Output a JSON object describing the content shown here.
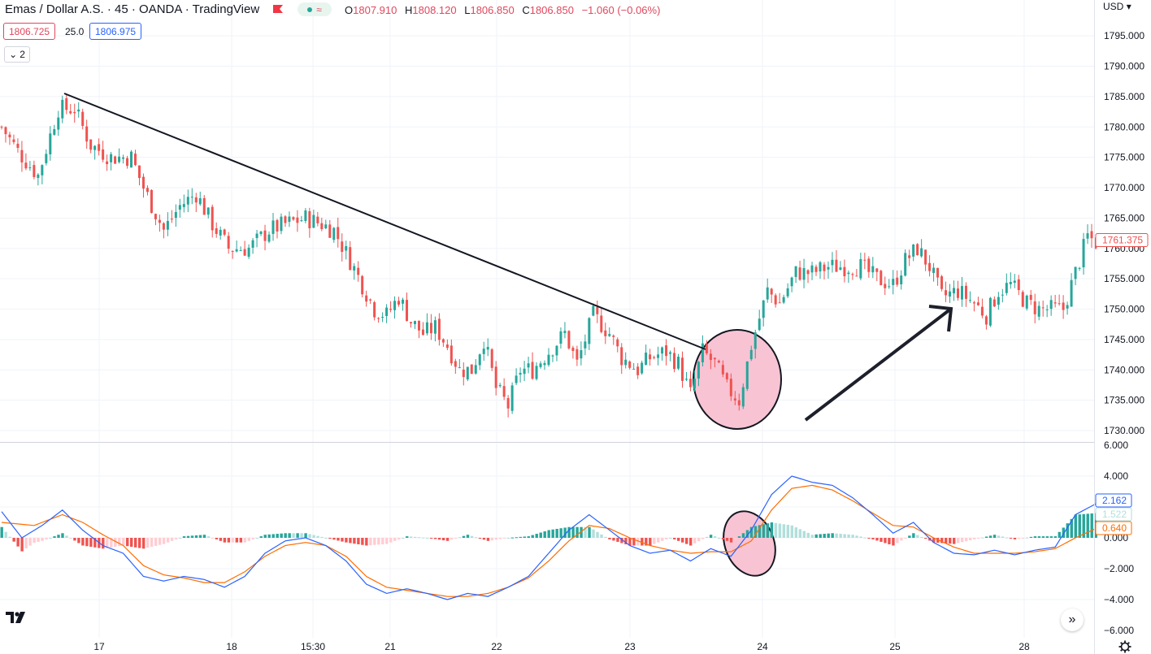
{
  "header": {
    "title": "Emas / Dollar A.S. · 45 · OANDA · TradingView",
    "ohlc": {
      "o_label": "O",
      "o": "1807.910",
      "h_label": "H",
      "h": "1808.120",
      "l_label": "L",
      "l": "1806.850",
      "c_label": "C",
      "c": "1806.850",
      "change": "−1.060 (−0.06%)"
    },
    "bid": "1806.725",
    "spread": "25.0",
    "ask": "1806.975",
    "indicator_count": "2",
    "currency": "USD"
  },
  "colors": {
    "up": "#26a69a",
    "down": "#ef5350",
    "hist_up_strong": "#26a69a",
    "hist_up_weak": "#b2dfdb",
    "hist_down_strong": "#ef5350",
    "hist_down_weak": "#ffcdd2",
    "macd": "#2962ff",
    "signal": "#ff6d00",
    "highlight": "#f8c3d3"
  },
  "chart_data": [
    {
      "type": "candlestick",
      "ylim": [
        1728,
        1799
      ],
      "y_ticks": [
        "1730.000",
        "1735.000",
        "1740.000",
        "1745.000",
        "1750.000",
        "1755.000",
        "1760.000",
        "1765.000",
        "1770.000",
        "1775.000",
        "1780.000",
        "1785.000",
        "1790.000",
        "1795.000"
      ],
      "x_ticks": [
        "17",
        "18",
        "15:30",
        "21",
        "22",
        "23",
        "24",
        "25",
        "28"
      ],
      "last_price": "1761.375",
      "close_path": [
        [
          0,
          1780
        ],
        [
          4,
          1776
        ],
        [
          9,
          1772
        ],
        [
          14,
          1783
        ],
        [
          18,
          1783
        ],
        [
          22,
          1777
        ],
        [
          27,
          1775
        ],
        [
          32,
          1775
        ],
        [
          35,
          1770
        ],
        [
          40,
          1763
        ],
        [
          44,
          1767
        ],
        [
          48,
          1769
        ],
        [
          52,
          1764
        ],
        [
          56,
          1760
        ],
        [
          61,
          1760
        ],
        [
          66,
          1763
        ],
        [
          70,
          1764
        ],
        [
          75,
          1765
        ],
        [
          79,
          1764
        ],
        [
          82,
          1763
        ],
        [
          86,
          1758
        ],
        [
          89,
          1754
        ],
        [
          92,
          1750
        ],
        [
          95,
          1749
        ],
        [
          98,
          1752
        ],
        [
          101,
          1748
        ],
        [
          104,
          1746
        ],
        [
          107,
          1747
        ],
        [
          110,
          1744
        ],
        [
          113,
          1740
        ],
        [
          116,
          1740
        ],
        [
          119,
          1745
        ],
        [
          122,
          1737
        ],
        [
          125,
          1734
        ],
        [
          128,
          1740
        ],
        [
          131,
          1740
        ],
        [
          135,
          1743
        ],
        [
          139,
          1746
        ],
        [
          142,
          1741
        ],
        [
          146,
          1749
        ],
        [
          150,
          1746
        ],
        [
          153,
          1742
        ],
        [
          157,
          1740
        ],
        [
          160,
          1742
        ],
        [
          164,
          1743
        ],
        [
          167,
          1741
        ],
        [
          170,
          1736
        ],
        [
          173,
          1743
        ],
        [
          176,
          1741
        ],
        [
          179,
          1737
        ],
        [
          182,
          1735
        ],
        [
          185,
          1744
        ],
        [
          189,
          1753
        ],
        [
          192,
          1751
        ],
        [
          196,
          1756
        ],
        [
          200,
          1756
        ],
        [
          204,
          1757
        ],
        [
          208,
          1757
        ],
        [
          212,
          1757
        ],
        [
          216,
          1755
        ],
        [
          220,
          1754
        ],
        [
          223,
          1758
        ],
        [
          226,
          1760
        ],
        [
          229,
          1757
        ],
        [
          232,
          1752
        ],
        [
          236,
          1753
        ],
        [
          240,
          1751
        ],
        [
          243,
          1749
        ],
        [
          246,
          1753
        ],
        [
          249,
          1754
        ],
        [
          253,
          1751
        ],
        [
          256,
          1750
        ],
        [
          259,
          1750
        ],
        [
          262,
          1750
        ],
        [
          265,
          1756
        ],
        [
          268,
          1762
        ],
        [
          270,
          1761
        ]
      ]
    },
    {
      "type": "macd",
      "ylim": [
        -6,
        6
      ],
      "y_ticks": [
        "6.000",
        "4.000",
        "2.000",
        "0.000",
        "−2.000",
        "−4.000",
        "−6.000"
      ],
      "macd_value": "2.162",
      "signal_value": "0.640",
      "hist_value": "1.522",
      "macd_path": [
        [
          0,
          1.7
        ],
        [
          5,
          0.0
        ],
        [
          10,
          0.8
        ],
        [
          15,
          1.8
        ],
        [
          20,
          0.5
        ],
        [
          25,
          -0.5
        ],
        [
          30,
          -1.0
        ],
        [
          35,
          -2.5
        ],
        [
          40,
          -2.8
        ],
        [
          45,
          -2.5
        ],
        [
          50,
          -2.7
        ],
        [
          55,
          -3.2
        ],
        [
          60,
          -2.5
        ],
        [
          65,
          -1.0
        ],
        [
          70,
          -0.2
        ],
        [
          75,
          0.0
        ],
        [
          80,
          -0.5
        ],
        [
          85,
          -1.5
        ],
        [
          90,
          -3.0
        ],
        [
          95,
          -3.6
        ],
        [
          100,
          -3.3
        ],
        [
          105,
          -3.6
        ],
        [
          110,
          -4.0
        ],
        [
          115,
          -3.6
        ],
        [
          120,
          -3.8
        ],
        [
          125,
          -3.2
        ],
        [
          130,
          -2.5
        ],
        [
          135,
          -1.0
        ],
        [
          140,
          0.5
        ],
        [
          145,
          1.5
        ],
        [
          150,
          0.5
        ],
        [
          155,
          -0.5
        ],
        [
          160,
          -1.0
        ],
        [
          165,
          -0.8
        ],
        [
          170,
          -1.5
        ],
        [
          175,
          -0.7
        ],
        [
          180,
          -1.2
        ],
        [
          185,
          0.5
        ],
        [
          190,
          2.8
        ],
        [
          195,
          4.0
        ],
        [
          200,
          3.6
        ],
        [
          205,
          3.4
        ],
        [
          210,
          2.6
        ],
        [
          215,
          1.5
        ],
        [
          220,
          0.3
        ],
        [
          225,
          1.0
        ],
        [
          230,
          -0.3
        ],
        [
          235,
          -1.0
        ],
        [
          240,
          -1.1
        ],
        [
          245,
          -0.8
        ],
        [
          250,
          -1.1
        ],
        [
          255,
          -0.8
        ],
        [
          260,
          -0.6
        ],
        [
          265,
          1.5
        ],
        [
          270,
          2.2
        ]
      ],
      "signal_path": [
        [
          0,
          1.0
        ],
        [
          8,
          0.8
        ],
        [
          15,
          1.5
        ],
        [
          20,
          1.0
        ],
        [
          25,
          0.2
        ],
        [
          30,
          -0.5
        ],
        [
          35,
          -1.8
        ],
        [
          40,
          -2.4
        ],
        [
          45,
          -2.6
        ],
        [
          50,
          -2.9
        ],
        [
          55,
          -2.9
        ],
        [
          60,
          -2.2
        ],
        [
          65,
          -1.2
        ],
        [
          70,
          -0.5
        ],
        [
          75,
          -0.3
        ],
        [
          80,
          -0.5
        ],
        [
          85,
          -1.2
        ],
        [
          90,
          -2.5
        ],
        [
          95,
          -3.2
        ],
        [
          100,
          -3.4
        ],
        [
          105,
          -3.6
        ],
        [
          110,
          -3.8
        ],
        [
          115,
          -3.8
        ],
        [
          120,
          -3.6
        ],
        [
          125,
          -3.2
        ],
        [
          130,
          -2.6
        ],
        [
          135,
          -1.5
        ],
        [
          140,
          -0.2
        ],
        [
          145,
          0.8
        ],
        [
          150,
          0.6
        ],
        [
          155,
          0.0
        ],
        [
          160,
          -0.5
        ],
        [
          165,
          -0.8
        ],
        [
          170,
          -1.0
        ],
        [
          175,
          -0.9
        ],
        [
          180,
          -0.9
        ],
        [
          185,
          -0.2
        ],
        [
          190,
          1.8
        ],
        [
          195,
          3.2
        ],
        [
          200,
          3.4
        ],
        [
          205,
          3.1
        ],
        [
          210,
          2.4
        ],
        [
          215,
          1.6
        ],
        [
          220,
          0.8
        ],
        [
          225,
          0.7
        ],
        [
          230,
          0.0
        ],
        [
          235,
          -0.6
        ],
        [
          240,
          -1.0
        ],
        [
          245,
          -1.0
        ],
        [
          250,
          -1.0
        ],
        [
          255,
          -0.9
        ],
        [
          260,
          -0.7
        ],
        [
          265,
          0.0
        ],
        [
          270,
          0.6
        ]
      ]
    }
  ],
  "controls": {
    "nav_label": "»"
  }
}
